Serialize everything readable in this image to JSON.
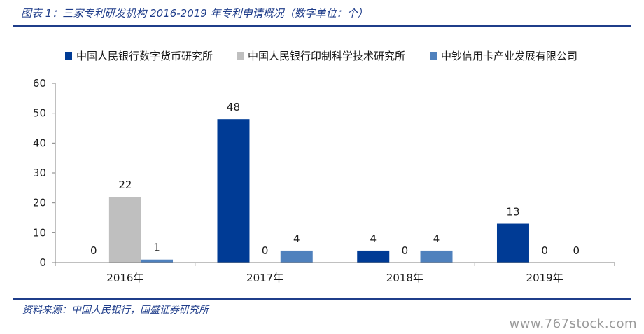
{
  "title": "图表 1：三家专利研发机构 2016-2019 年专利申请概况（数字单位：个）",
  "source": "资料来源：中国人民银行，国盛证券研究所",
  "watermark": "www.767stock.com",
  "chart_data": {
    "type": "bar",
    "categories": [
      "2016年",
      "2017年",
      "2018年",
      "2019年"
    ],
    "series": [
      {
        "name": "中国人民银行数字货币研究所",
        "color": "#003B95",
        "values": [
          0,
          48,
          4,
          13
        ]
      },
      {
        "name": "中国人民银行印制科学技术研究所",
        "color": "#BFBFBF",
        "values": [
          22,
          0,
          0,
          0
        ]
      },
      {
        "name": "中钞信用卡产业发展有限公司",
        "color": "#4F81BD",
        "values": [
          1,
          4,
          4,
          0
        ]
      }
    ],
    "ylim": [
      0,
      60
    ],
    "yticks": [
      0,
      10,
      20,
      30,
      40,
      50,
      60
    ],
    "legend": "top",
    "grid": false,
    "data_labels": true
  }
}
